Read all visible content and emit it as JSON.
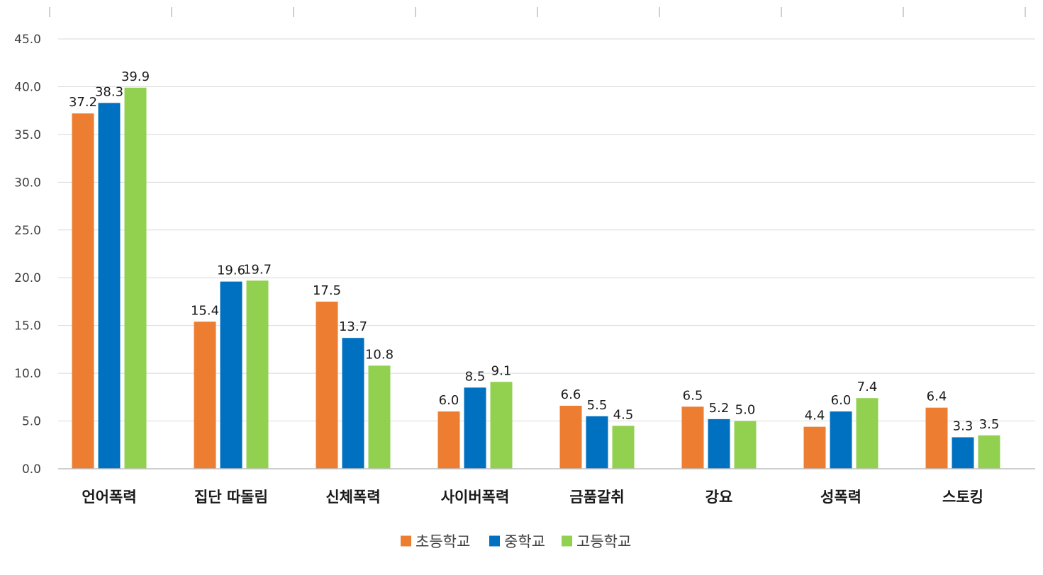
{
  "chart_data": {
    "type": "bar",
    "categories": [
      "언어폭력",
      "집단 따돌림",
      "신체폭력",
      "사이버폭력",
      "금품갈취",
      "강요",
      "성폭력",
      "스토킹"
    ],
    "series": [
      {
        "name": "초등학교",
        "color": "#ED7D31",
        "values": [
          37.2,
          15.4,
          17.5,
          6.0,
          6.6,
          6.5,
          4.4,
          6.4
        ]
      },
      {
        "name": "중학교",
        "color": "#0070C0",
        "values": [
          38.3,
          19.6,
          13.7,
          8.5,
          5.5,
          5.2,
          6.0,
          3.3
        ]
      },
      {
        "name": "고등학교",
        "color": "#92D050",
        "values": [
          39.9,
          19.7,
          10.8,
          9.1,
          4.5,
          5.0,
          7.4,
          3.5
        ]
      }
    ],
    "ylim": [
      0,
      45
    ],
    "yticks": [
      "0.0",
      "5.0",
      "10.0",
      "15.0",
      "20.0",
      "25.0",
      "30.0",
      "35.0",
      "40.0",
      "45.0"
    ],
    "data_label_format": "0.0",
    "grid": true,
    "legend": "bottom-center",
    "title": "",
    "xlabel": "",
    "ylabel": ""
  }
}
